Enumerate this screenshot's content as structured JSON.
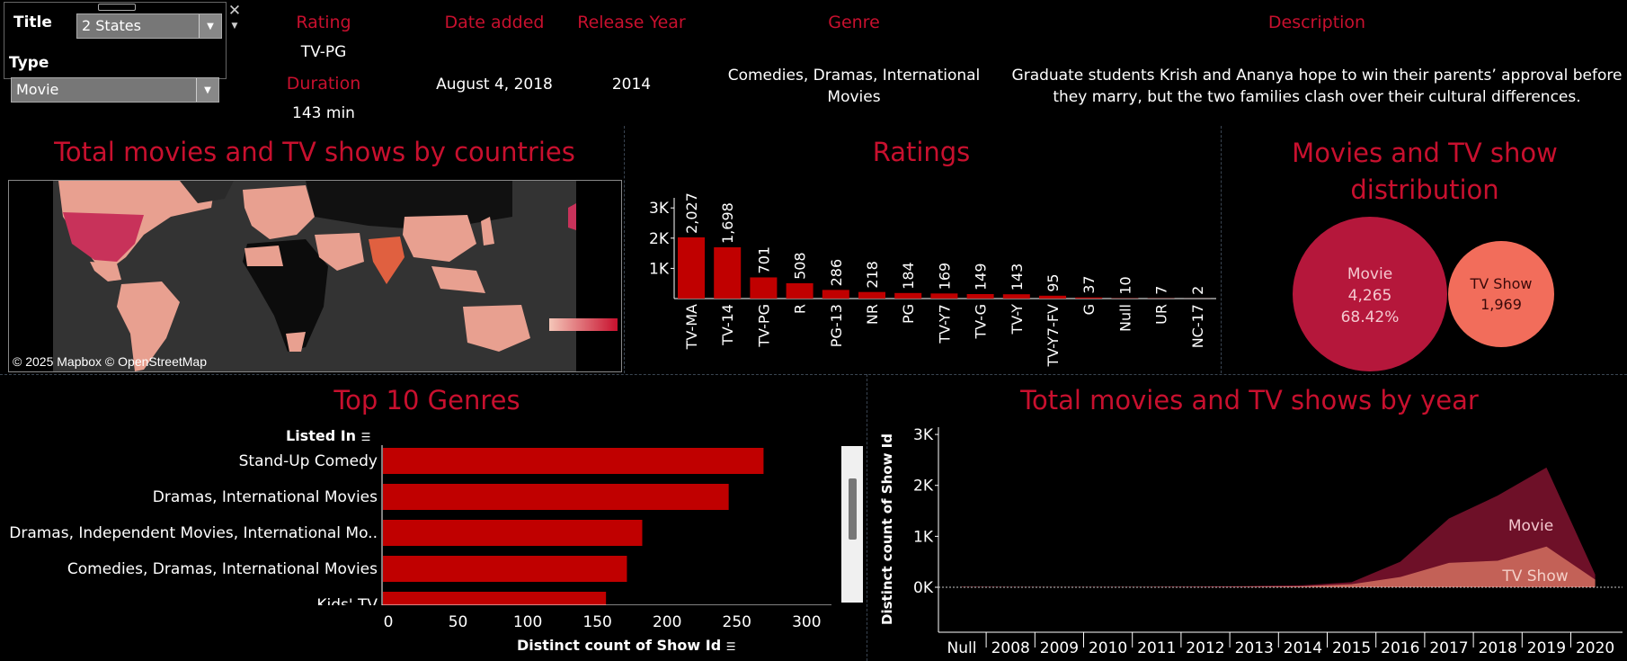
{
  "filters": {
    "title_label": "Title",
    "title_value": "2 States",
    "type_label": "Type",
    "type_value": "Movie"
  },
  "details": {
    "rating_label": "Rating",
    "rating_value": "TV-PG",
    "duration_label": "Duration",
    "duration_value": "143 min",
    "date_added_label": "Date added",
    "date_added_value": "August 4, 2018",
    "release_year_label": "Release Year",
    "release_year_value": "2014",
    "genre_label": "Genre",
    "genre_value": "Comedies, Dramas, International Movies",
    "description_label": "Description",
    "description_value": "Graduate students Krish and Ananya hope to win their parents’ approval before they marry, but the two families clash over their cultural differences."
  },
  "map": {
    "title": "Total movies and TV shows by countries",
    "attribution": "© 2025 Mapbox © OpenStreetMap"
  },
  "ratings": {
    "title": "Ratings"
  },
  "distribution": {
    "title": "Movies and TV show distribution",
    "movie_label": "Movie",
    "movie_count": "4,265",
    "movie_pct": "68.42%",
    "tv_label": "TV Show",
    "tv_count": "1,969"
  },
  "genres": {
    "title": "Top 10 Genres",
    "column_header": "Listed In",
    "x_axis_label": "Distinct count of Show Id"
  },
  "years": {
    "title": "Total movies and TV shows by year",
    "y_axis_label": "Distinct count of Show Id",
    "movie_label": "Movie",
    "tv_label": "TV Show"
  },
  "colors": {
    "accent": "#c8102e",
    "bar": "#c00000",
    "movie_bubble": "#b5173b",
    "tv_bubble": "#f26d5b",
    "movie_area": "#6e1028",
    "tv_area": "#d2705f"
  },
  "chart_data": [
    {
      "type": "bar",
      "title": "Ratings",
      "categories": [
        "TV-MA",
        "TV-14",
        "TV-PG",
        "R",
        "PG-13",
        "NR",
        "PG",
        "TV-Y7",
        "TV-G",
        "TV-Y",
        "TV-Y7-FV",
        "G",
        "Null",
        "UR",
        "NC-17"
      ],
      "values": [
        2027,
        1698,
        701,
        508,
        286,
        218,
        184,
        169,
        149,
        143,
        95,
        37,
        10,
        7,
        2
      ],
      "value_labels": [
        "2,027",
        "1,698",
        "701",
        "508",
        "286",
        "218",
        "184",
        "169",
        "149",
        "143",
        "95",
        "37",
        "10",
        "7",
        "2"
      ],
      "yticks": [
        "1K",
        "2K",
        "3K"
      ],
      "ylim": [
        0,
        4000
      ]
    },
    {
      "type": "pie",
      "title": "Movies and TV show distribution",
      "categories": [
        "Movie",
        "TV Show"
      ],
      "values": [
        4265,
        1969
      ]
    },
    {
      "type": "bar",
      "orientation": "horizontal",
      "title": "Top 10 Genres",
      "categories": [
        "Stand-Up Comedy",
        "Dramas, International Movies",
        "Dramas, Independent Movies, International Mo..",
        "Comedies, Dramas, International Movies",
        "Kids' TV"
      ],
      "values": [
        273,
        248,
        186,
        175,
        160
      ],
      "xticks": [
        0,
        50,
        100,
        150,
        200,
        250,
        300
      ],
      "xlim": [
        0,
        320
      ],
      "xlabel": "Distinct count of Show Id"
    },
    {
      "type": "area",
      "title": "Total movies and TV shows by year",
      "categories": [
        "Null",
        "2008",
        "2009",
        "2010",
        "2011",
        "2012",
        "2013",
        "2014",
        "2015",
        "2016",
        "2017",
        "2018",
        "2019",
        "2020"
      ],
      "series": [
        {
          "name": "Movie",
          "values": [
            12,
            8,
            5,
            8,
            10,
            15,
            25,
            40,
            100,
            500,
            1350,
            1800,
            2350,
            250
          ]
        },
        {
          "name": "TV Show",
          "values": [
            5,
            2,
            2,
            2,
            5,
            5,
            10,
            20,
            60,
            200,
            480,
            520,
            800,
            150
          ]
        }
      ],
      "yticks": [
        "0K",
        "1K",
        "2K",
        "3K"
      ],
      "ylim": [
        0,
        3300
      ],
      "ylabel": "Distinct count of Show Id"
    }
  ]
}
